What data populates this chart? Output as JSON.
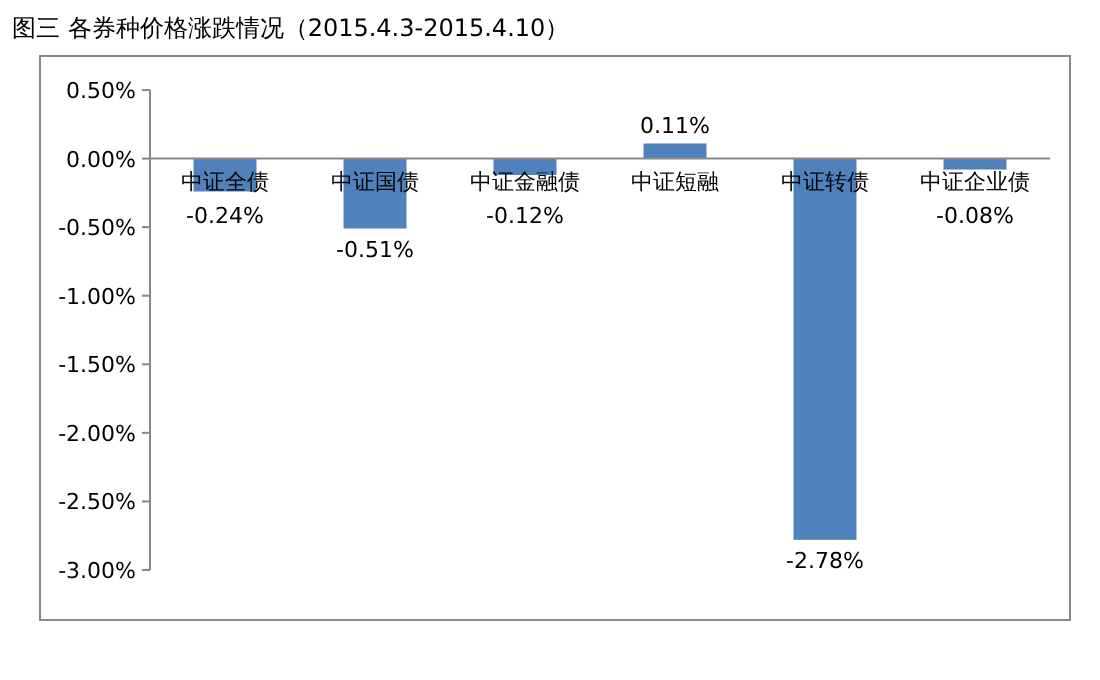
{
  "chart_data": {
    "type": "bar",
    "title": "图三 各券种价格涨跌情况（2015.4.3-2015.4.10）",
    "categories": [
      "中证全债",
      "中证国债",
      "中证金融债",
      "中证短融",
      "中证转债",
      "中证企业债"
    ],
    "values": [
      -0.24,
      -0.51,
      -0.12,
      0.11,
      -2.78,
      -0.08
    ],
    "value_labels": [
      "-0.24%",
      "-0.51%",
      "-0.12%",
      "0.11%",
      "-2.78%",
      "-0.08%"
    ],
    "color": "#4f81bd",
    "ylim": [
      -3.0,
      0.5
    ],
    "yticks": [
      {
        "value": 0.5,
        "label": "0.50%"
      },
      {
        "value": 0,
        "label": "0.00%"
      },
      {
        "value": -0.5,
        "label": "-0.50%"
      },
      {
        "value": -1,
        "label": "-1.00%"
      },
      {
        "value": -1.5,
        "label": "-1.50%"
      },
      {
        "value": -2,
        "label": "-2.00%"
      },
      {
        "value": -2.5,
        "label": "-2.50%"
      },
      {
        "value": -3,
        "label": "-3.00%"
      }
    ],
    "grid": false
  }
}
